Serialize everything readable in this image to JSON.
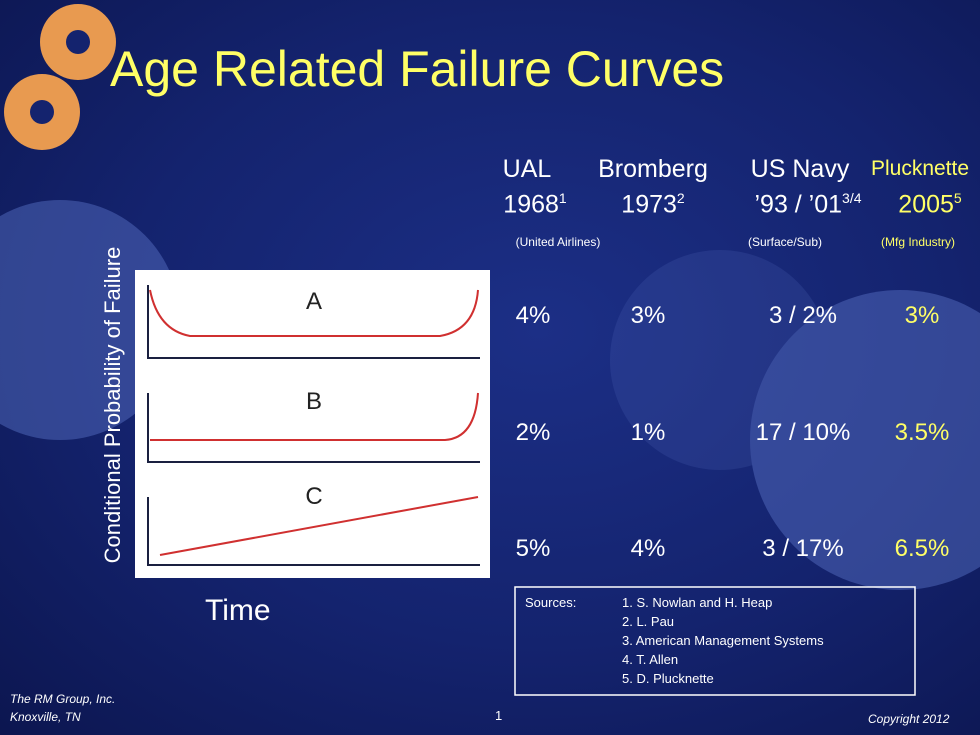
{
  "title": "Age Related Failure Curves",
  "columns": [
    {
      "name": "UAL",
      "year": "1968",
      "sup": "1",
      "note": "(United Airlines)"
    },
    {
      "name": "Bromberg",
      "year": "1973",
      "sup": "2"
    },
    {
      "name": "US Navy",
      "year": "’93 / ’01",
      "sup": "3/4",
      "note": "(Surface/Sub)"
    },
    {
      "name": "Plucknette",
      "year": "2005",
      "sup": "5",
      "note": "(Mfg Industry)"
    }
  ],
  "rows": [
    {
      "label": "A",
      "values": [
        "4%",
        "3%",
        "3 / 2%",
        "3%"
      ]
    },
    {
      "label": "B",
      "values": [
        "2%",
        "1%",
        "17 / 10%",
        "3.5%"
      ]
    },
    {
      "label": "C",
      "values": [
        "5%",
        "4%",
        "3 / 17%",
        "6.5%"
      ]
    }
  ],
  "y_axis_label": "Conditional  Probability  of Failure",
  "x_axis_label": "Time",
  "sources": {
    "label": "Sources:",
    "items": [
      "1. S. Nowlan and H. Heap",
      "2. L. Pau",
      "3. American Management  Systems",
      "4. T. Allen",
      "5. D. Plucknette"
    ]
  },
  "footer": {
    "company": "The RM Group, Inc.",
    "location": "Knoxville, TN",
    "page": "1",
    "copyright": "Copyright 2012"
  }
}
